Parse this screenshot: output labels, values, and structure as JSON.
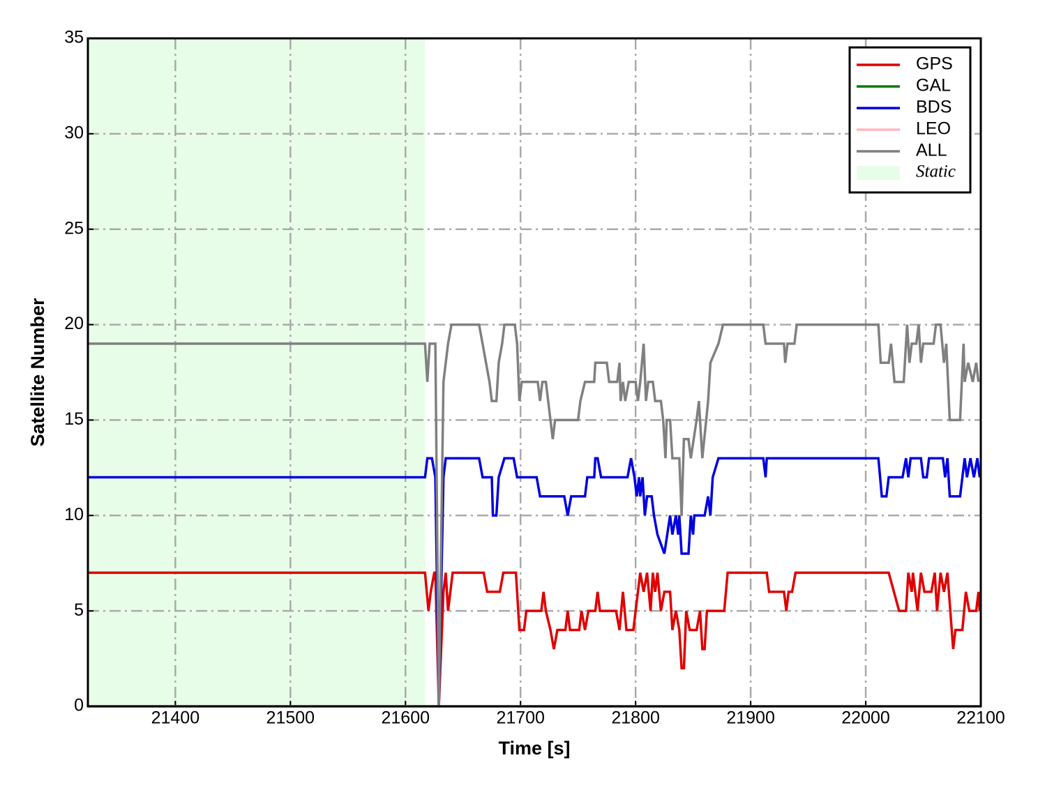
{
  "chart_data": {
    "type": "line",
    "xlabel": "Time [s]",
    "ylabel": "Satellite Number",
    "xlim": [
      21324,
      22100
    ],
    "ylim": [
      0,
      35
    ],
    "xticks": [
      21400,
      21500,
      21600,
      21700,
      21800,
      21900,
      22000,
      22100
    ],
    "yticks": [
      0,
      5,
      10,
      15,
      20,
      25,
      30,
      35
    ],
    "grid": true,
    "legend": "upper right",
    "spans": [
      {
        "name": "Static",
        "color": "#e8fde8",
        "x": [
          21324,
          21617
        ]
      }
    ],
    "series": [
      {
        "name": "GPS",
        "color": "#e00000",
        "x": [
          21324,
          21617,
          21620,
          21622,
          21625,
          21626,
          21629,
          21633,
          21635,
          21637,
          21641,
          21668,
          21671,
          21682,
          21685,
          21696,
          21699,
          21703,
          21705,
          21718,
          21720,
          21722,
          21726,
          21729,
          21732,
          21739,
          21741,
          21743,
          21751,
          21753,
          21756,
          21759,
          21765,
          21767,
          21769,
          21783,
          21786,
          21789,
          21792,
          21798,
          21804,
          21807,
          21810,
          21813,
          21815,
          21817,
          21819,
          21822,
          21825,
          21830,
          21832,
          21835,
          21838,
          21840,
          21842,
          21844,
          21847,
          21853,
          21856,
          21858,
          21860,
          21862,
          21877,
          21880,
          21914,
          21916,
          21929,
          21931,
          21933,
          21936,
          21939,
          22020,
          22029,
          22035,
          22037,
          22040,
          22041,
          22045,
          22048,
          22051,
          22057,
          22060,
          22062,
          22065,
          22068,
          22071,
          22076,
          22078,
          22084,
          22087,
          22090,
          22096,
          22098,
          22099
        ],
        "values": [
          7,
          7,
          5,
          6,
          7,
          7,
          0,
          6,
          7,
          5,
          7,
          7,
          6,
          6,
          7,
          7,
          4,
          4,
          5,
          5,
          6,
          5,
          4,
          3,
          4,
          4,
          5,
          4,
          4,
          5,
          4,
          5,
          5,
          6,
          5,
          5,
          4,
          6,
          4,
          4,
          7,
          6,
          7,
          5,
          7,
          6,
          7,
          5,
          6,
          6,
          4,
          5,
          4,
          2,
          2,
          5,
          4,
          4,
          5,
          3,
          3,
          5,
          5,
          7,
          7,
          6,
          6,
          5,
          6,
          6,
          7,
          7,
          5,
          5,
          7,
          6,
          7,
          5,
          7,
          6,
          6,
          7,
          5,
          7,
          6,
          7,
          3,
          4,
          4,
          6,
          5,
          5,
          6,
          5
        ]
      },
      {
        "name": "GAL",
        "color": "#007a00",
        "x": [
          21324,
          22100
        ],
        "values": [
          0,
          0
        ]
      },
      {
        "name": "BDS",
        "color": "#0000e0",
        "x": [
          21324,
          21617,
          21619,
          21623,
          21626,
          21629,
          21633,
          21635,
          21664,
          21667,
          21675,
          21676,
          21679,
          21681,
          21686,
          21694,
          21697,
          21714,
          21717,
          21738,
          21741,
          21744,
          21756,
          21758,
          21764,
          21765,
          21767,
          21770,
          21793,
          21796,
          21799,
          21801,
          21803,
          21804,
          21806,
          21808,
          21810,
          21814,
          21816,
          21819,
          21825,
          21830,
          21832,
          21835,
          21837,
          21838,
          21840,
          21846,
          21848,
          21850,
          21851,
          21860,
          21863,
          21865,
          21867,
          21872,
          21911,
          21913,
          21914,
          22011,
          22014,
          22018,
          22020,
          22032,
          22035,
          22037,
          22039,
          22048,
          22050,
          22053,
          22055,
          22067,
          22069,
          22071,
          22073,
          22082,
          22086,
          22088,
          22091,
          22094,
          22097,
          22099
        ],
        "values": [
          12,
          12,
          13,
          13,
          12,
          0,
          12,
          13,
          13,
          12,
          12,
          10,
          10,
          12,
          13,
          13,
          12,
          12,
          11,
          11,
          10,
          11,
          11,
          12,
          12,
          13,
          13,
          12,
          12,
          13,
          12,
          11,
          12,
          11,
          12,
          10,
          11,
          11,
          10,
          9,
          8,
          10,
          9,
          10,
          9,
          10,
          8,
          8,
          10,
          9,
          10,
          10,
          11,
          10,
          12,
          13,
          13,
          12,
          13,
          13,
          11,
          11,
          12,
          12,
          13,
          12,
          13,
          13,
          12,
          12,
          13,
          13,
          12,
          13,
          11,
          11,
          13,
          12,
          13,
          12,
          13,
          12
        ]
      },
      {
        "name": "LEO",
        "color": "#ffb6c1",
        "x": [
          21324,
          22100
        ],
        "values": [
          0,
          0
        ]
      },
      {
        "name": "ALL",
        "color": "#808080",
        "x": [
          21324,
          21617,
          21619,
          21621,
          21626,
          21629,
          21633,
          21635,
          21637,
          21640,
          21664,
          21667,
          21670,
          21673,
          21675,
          21679,
          21681,
          21684,
          21686,
          21695,
          21697,
          21699,
          21701,
          21715,
          21717,
          21719,
          21722,
          21724,
          21726,
          21728,
          21730,
          21750,
          21752,
          21756,
          21764,
          21765,
          21775,
          21777,
          21784,
          21786,
          21787,
          21789,
          21791,
          21794,
          21800,
          21802,
          21804,
          21807,
          21809,
          21811,
          21815,
          21817,
          21822,
          21824,
          21826,
          21827,
          21830,
          21832,
          21838,
          21840,
          21842,
          21846,
          21848,
          21853,
          21855,
          21858,
          21863,
          21865,
          21872,
          21876,
          21911,
          21913,
          21929,
          21930,
          21932,
          21938,
          21940,
          22011,
          22013,
          22020,
          22022,
          22025,
          22033,
          22036,
          22038,
          22040,
          22044,
          22046,
          22048,
          22050,
          22059,
          22061,
          22065,
          22068,
          22070,
          22073,
          22082,
          22085,
          22086,
          22089,
          22093,
          22096,
          22098
        ],
        "values": [
          19,
          19,
          17,
          19,
          19,
          0,
          17,
          18,
          19,
          20,
          20,
          19,
          18,
          17,
          16,
          16,
          18,
          19,
          20,
          20,
          19,
          16,
          17,
          17,
          16,
          17,
          17,
          16,
          15,
          14,
          15,
          15,
          16,
          17,
          17,
          18,
          18,
          17,
          17,
          18,
          16,
          17,
          16,
          17,
          17,
          16,
          17,
          19,
          16,
          17,
          17,
          16,
          16,
          15,
          13,
          15,
          15,
          13,
          13,
          10,
          14,
          14,
          13,
          15,
          16,
          13,
          16,
          18,
          19,
          20,
          20,
          19,
          19,
          18,
          19,
          19,
          20,
          20,
          18,
          18,
          19,
          17,
          17,
          20,
          18,
          19,
          19,
          20,
          18,
          19,
          19,
          20,
          20,
          18,
          19,
          15,
          15,
          19,
          17,
          18,
          17,
          18,
          17
        ]
      }
    ]
  }
}
